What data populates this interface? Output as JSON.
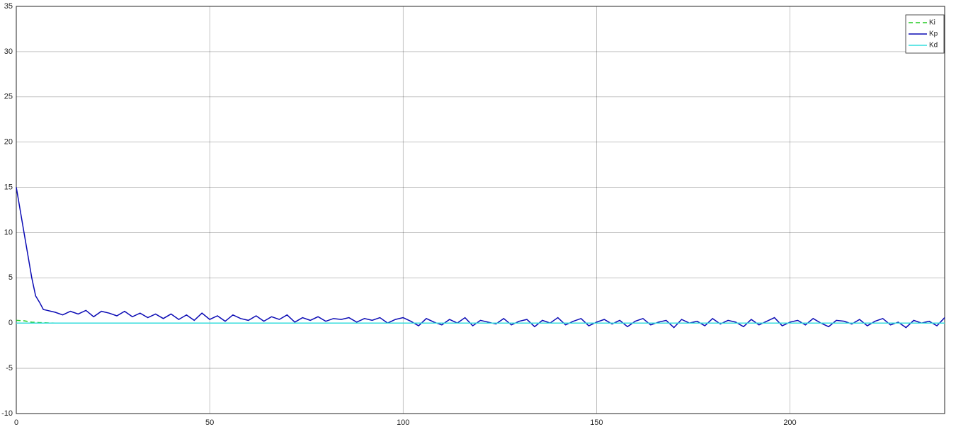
{
  "chart_data": {
    "type": "line",
    "xlim": [
      0,
      240
    ],
    "xticks": [
      0,
      50,
      100,
      150,
      200
    ],
    "ylim": [
      -10,
      35
    ],
    "yticks": [
      -10,
      -5,
      0,
      5,
      10,
      15,
      20,
      25,
      30,
      35
    ],
    "grid": true,
    "legend": "northeast",
    "series": [
      {
        "name": "Ki",
        "color": "#22cc22",
        "dash": true,
        "x": [
          0,
          2,
          4,
          6,
          10,
          240
        ],
        "values": [
          0.3,
          0.25,
          0.1,
          0.05,
          0,
          0
        ]
      },
      {
        "name": "Kp",
        "color": "#0a0ab4",
        "dash": false,
        "x": [
          0,
          1,
          2,
          3,
          4,
          5,
          6,
          7,
          8,
          9,
          10,
          12,
          14,
          16,
          18,
          20,
          22,
          24,
          26,
          28,
          30,
          32,
          34,
          36,
          38,
          40,
          42,
          44,
          46,
          48,
          50,
          52,
          54,
          56,
          58,
          60,
          62,
          64,
          66,
          68,
          70,
          72,
          74,
          76,
          78,
          80,
          82,
          84,
          86,
          88,
          90,
          92,
          94,
          96,
          98,
          100,
          102,
          104,
          106,
          108,
          110,
          112,
          114,
          116,
          118,
          120,
          122,
          124,
          126,
          128,
          130,
          132,
          134,
          136,
          138,
          140,
          142,
          144,
          146,
          148,
          150,
          152,
          154,
          156,
          158,
          160,
          162,
          164,
          166,
          168,
          170,
          172,
          174,
          176,
          178,
          180,
          182,
          184,
          186,
          188,
          190,
          192,
          194,
          196,
          198,
          200,
          202,
          204,
          206,
          208,
          210,
          212,
          214,
          216,
          218,
          220,
          222,
          224,
          226,
          228,
          230,
          232,
          234,
          236,
          238,
          240
        ],
        "values": [
          15,
          12.5,
          10,
          7.5,
          5,
          3,
          2.3,
          1.5,
          1.4,
          1.3,
          1.2,
          0.9,
          1.3,
          1.0,
          1.4,
          0.7,
          1.3,
          1.1,
          0.8,
          1.3,
          0.7,
          1.1,
          0.6,
          1.0,
          0.5,
          1.0,
          0.4,
          0.9,
          0.3,
          1.1,
          0.4,
          0.8,
          0.2,
          0.9,
          0.5,
          0.3,
          0.8,
          0.2,
          0.7,
          0.4,
          0.9,
          0.1,
          0.6,
          0.3,
          0.7,
          0.2,
          0.5,
          0.4,
          0.6,
          0.1,
          0.5,
          0.3,
          0.6,
          0.0,
          0.4,
          0.6,
          0.2,
          -0.3,
          0.5,
          0.1,
          -0.2,
          0.4,
          0.0,
          0.6,
          -0.3,
          0.3,
          0.1,
          -0.1,
          0.5,
          -0.2,
          0.2,
          0.4,
          -0.4,
          0.3,
          0.0,
          0.6,
          -0.2,
          0.2,
          0.5,
          -0.3,
          0.1,
          0.4,
          -0.1,
          0.3,
          -0.4,
          0.2,
          0.5,
          -0.2,
          0.1,
          0.3,
          -0.5,
          0.4,
          0.0,
          0.2,
          -0.3,
          0.5,
          -0.1,
          0.3,
          0.1,
          -0.4,
          0.4,
          -0.2,
          0.2,
          0.6,
          -0.3,
          0.1,
          0.3,
          -0.2,
          0.5,
          0.0,
          -0.4,
          0.3,
          0.2,
          -0.1,
          0.4,
          -0.3,
          0.2,
          0.5,
          -0.2,
          0.1,
          -0.5,
          0.3,
          0.0,
          0.2,
          -0.3,
          0.6
        ]
      },
      {
        "name": "Kd",
        "color": "#33dddd",
        "dash": false,
        "x": [
          0,
          240
        ],
        "values": [
          0,
          0
        ]
      }
    ]
  }
}
